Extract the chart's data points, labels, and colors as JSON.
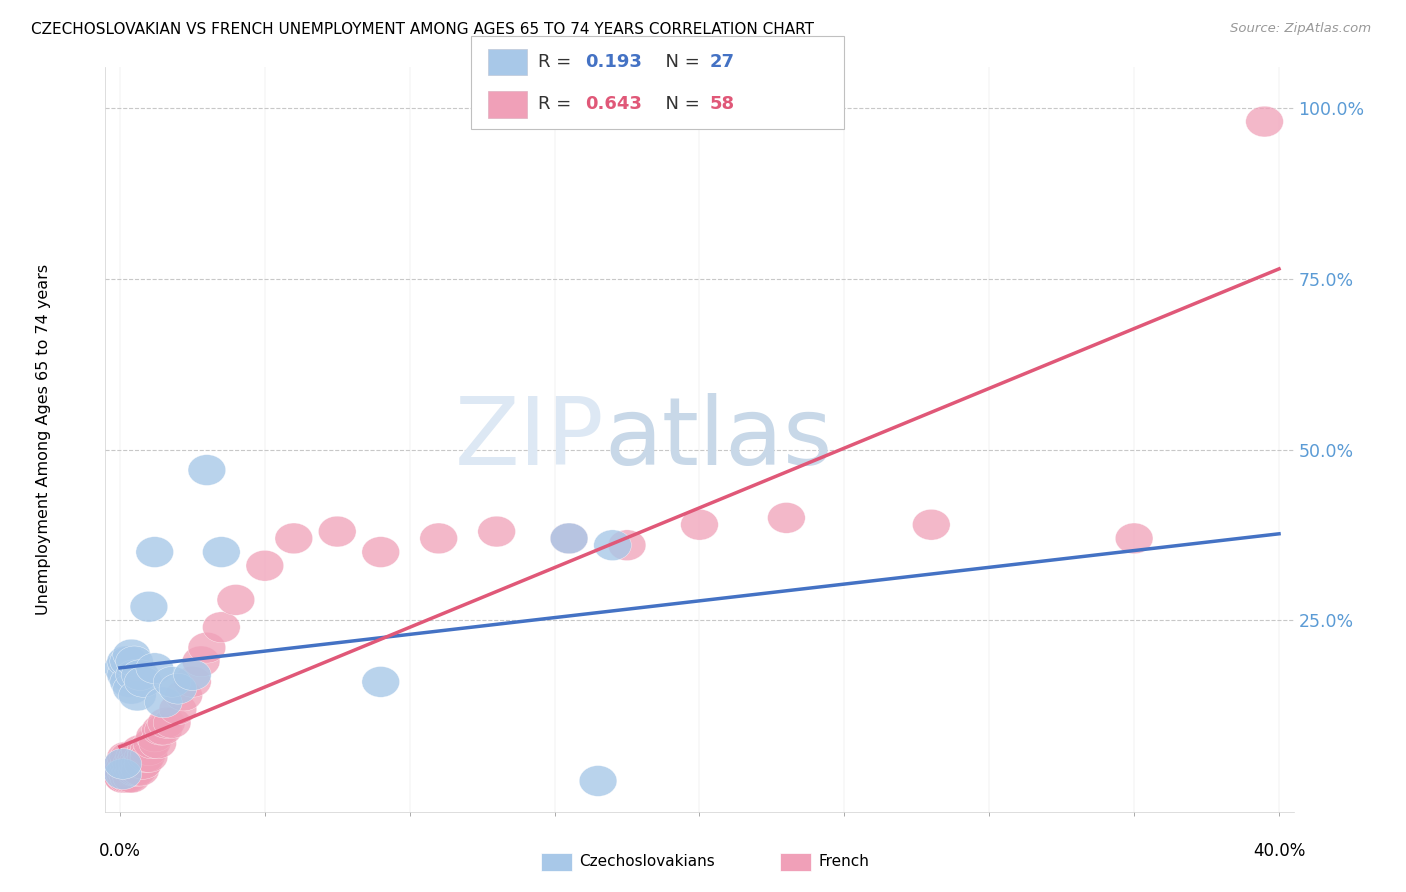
{
  "title": "CZECHOSLOVAKIAN VS FRENCH UNEMPLOYMENT AMONG AGES 65 TO 74 YEARS CORRELATION CHART",
  "source": "Source: ZipAtlas.com",
  "ylabel": "Unemployment Among Ages 65 to 74 years",
  "watermark_zip": "ZIP",
  "watermark_atlas": "atlas",
  "legend_r1": "R = ",
  "legend_v1": "0.193",
  "legend_n1": "N = ",
  "legend_nv1": "27",
  "legend_r2": "R = ",
  "legend_v2": "0.643",
  "legend_n2": "N = ",
  "legend_nv2": "58",
  "blue_color": "#a8c8e8",
  "pink_color": "#f0a0b8",
  "blue_line_color": "#4472c4",
  "pink_line_color": "#e05878",
  "right_axis_color": "#5b9bd5",
  "czecho_x": [
    0.001,
    0.001,
    0.001,
    0.002,
    0.002,
    0.003,
    0.003,
    0.004,
    0.004,
    0.005,
    0.005,
    0.006,
    0.007,
    0.008,
    0.01,
    0.012,
    0.015,
    0.018,
    0.02,
    0.025,
    0.03,
    0.035,
    0.09,
    0.155,
    0.165,
    0.17,
    0.012
  ],
  "czecho_y": [
    0.025,
    0.04,
    0.18,
    0.17,
    0.19,
    0.16,
    0.19,
    0.15,
    0.2,
    0.17,
    0.19,
    0.14,
    0.17,
    0.16,
    0.27,
    0.18,
    0.13,
    0.16,
    0.15,
    0.17,
    0.47,
    0.35,
    0.16,
    0.37,
    0.015,
    0.36,
    0.35
  ],
  "french_x": [
    0.001,
    0.001,
    0.001,
    0.001,
    0.001,
    0.002,
    0.002,
    0.002,
    0.002,
    0.003,
    0.003,
    0.003,
    0.003,
    0.004,
    0.004,
    0.004,
    0.005,
    0.005,
    0.005,
    0.006,
    0.006,
    0.006,
    0.007,
    0.007,
    0.007,
    0.008,
    0.008,
    0.009,
    0.009,
    0.01,
    0.01,
    0.011,
    0.012,
    0.013,
    0.014,
    0.015,
    0.016,
    0.018,
    0.02,
    0.022,
    0.025,
    0.028,
    0.03,
    0.035,
    0.04,
    0.05,
    0.06,
    0.075,
    0.09,
    0.11,
    0.13,
    0.155,
    0.175,
    0.2,
    0.23,
    0.28,
    0.35,
    0.395
  ],
  "french_y": [
    0.02,
    0.03,
    0.04,
    0.02,
    0.03,
    0.02,
    0.04,
    0.03,
    0.05,
    0.03,
    0.04,
    0.02,
    0.05,
    0.03,
    0.04,
    0.02,
    0.03,
    0.05,
    0.04,
    0.03,
    0.05,
    0.04,
    0.04,
    0.06,
    0.03,
    0.05,
    0.04,
    0.06,
    0.05,
    0.06,
    0.05,
    0.07,
    0.08,
    0.07,
    0.09,
    0.09,
    0.1,
    0.1,
    0.12,
    0.14,
    0.16,
    0.19,
    0.21,
    0.24,
    0.28,
    0.33,
    0.37,
    0.38,
    0.35,
    0.37,
    0.38,
    0.37,
    0.36,
    0.39,
    0.4,
    0.39,
    0.37,
    0.98
  ],
  "xmin": 0.0,
  "xmax": 0.4,
  "ymin": 0.0,
  "ymax": 1.0,
  "right_yticks": [
    0.0,
    0.25,
    0.5,
    0.75,
    1.0
  ],
  "right_yticklabels": [
    "",
    "25.0%",
    "50.0%",
    "75.0%",
    "100.0%"
  ]
}
